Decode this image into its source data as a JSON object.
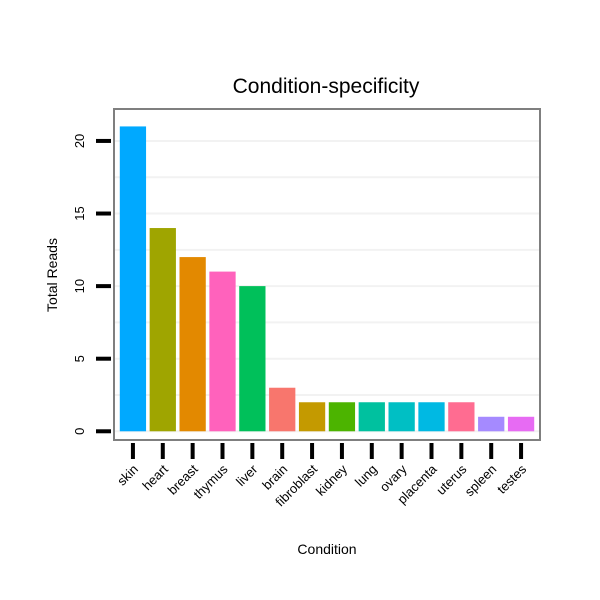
{
  "chart_data": {
    "type": "bar",
    "title": "Condition-specificity",
    "xlabel": "Condition",
    "ylabel": "Total Reads",
    "ylim": [
      -0.6,
      22.2
    ],
    "yticks": [
      0,
      5,
      10,
      15,
      20
    ],
    "grid": true,
    "legend": "none",
    "categories": [
      "skin",
      "heart",
      "breast",
      "thymus",
      "liver",
      "brain",
      "fibroblast",
      "kidney",
      "lung",
      "ovary",
      "placenta",
      "uterus",
      "spleen",
      "testes"
    ],
    "values": [
      21,
      14,
      12,
      11,
      10,
      3,
      2,
      2,
      2,
      2,
      2,
      2,
      1,
      1
    ],
    "colors": [
      "#00A9FF",
      "#9FA500",
      "#E38900",
      "#FF62BC",
      "#00C05A",
      "#F8766D",
      "#C49A00",
      "#4CB400",
      "#00C19F",
      "#00BFC4",
      "#00B9E3",
      "#FF6C91",
      "#A58AFF",
      "#E76BF3"
    ]
  }
}
